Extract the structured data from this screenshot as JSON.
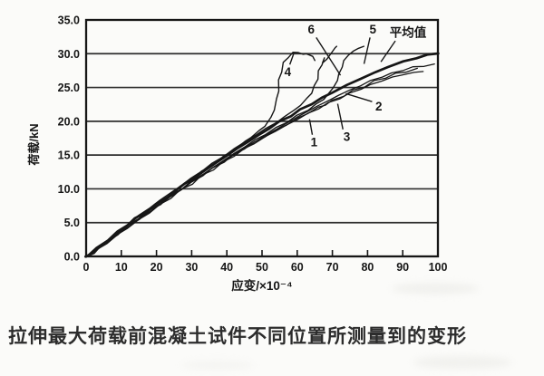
{
  "figure_caption": "拉伸最大荷载前混凝土试件不同位置所测量到的变形",
  "chart_data": {
    "type": "line",
    "title": "",
    "xlabel": "应变/×10⁻⁴",
    "ylabel": "荷载/kN",
    "xlim": [
      0,
      100
    ],
    "ylim": [
      0,
      35
    ],
    "x_ticks": [
      0,
      10,
      20,
      30,
      40,
      50,
      60,
      70,
      80,
      90,
      100
    ],
    "y_ticks": [
      "0.0",
      "5.0",
      "10.0",
      "15.0",
      "20.0",
      "25.0",
      "30.0",
      "35.0"
    ],
    "grid": "horizontal-only",
    "legend": "inline-numbered-labels",
    "ink_color": "#161616",
    "grid_color": "#2e2e2e",
    "series": [
      {
        "name": "1",
        "width": 1.3,
        "points": [
          [
            0,
            0
          ],
          [
            3,
            0.9
          ],
          [
            6,
            2.0
          ],
          [
            9,
            3.2
          ],
          [
            12,
            4.3
          ],
          [
            15,
            5.4
          ],
          [
            18,
            6.5
          ],
          [
            21,
            7.6
          ],
          [
            24,
            8.7
          ],
          [
            27,
            9.8
          ],
          [
            30,
            10.8
          ],
          [
            33,
            11.9
          ],
          [
            36,
            12.9
          ],
          [
            39,
            13.9
          ],
          [
            42,
            14.9
          ],
          [
            45,
            15.9
          ],
          [
            48,
            16.8
          ],
          [
            51,
            17.7
          ],
          [
            54,
            18.6
          ],
          [
            57,
            19.4
          ],
          [
            60,
            20.3
          ],
          [
            63,
            21.1
          ],
          [
            66,
            21.9
          ],
          [
            69,
            22.7
          ],
          [
            72,
            23.4
          ],
          [
            75,
            24.1
          ],
          [
            78,
            24.8
          ],
          [
            81,
            25.4
          ],
          [
            84,
            26.0
          ],
          [
            87,
            26.5
          ],
          [
            90,
            26.9
          ],
          [
            93,
            27.2
          ],
          [
            96,
            27.4
          ]
        ]
      },
      {
        "name": "2",
        "width": 1.3,
        "points": [
          [
            0,
            0
          ],
          [
            3,
            1.1
          ],
          [
            6,
            2.3
          ],
          [
            9,
            3.4
          ],
          [
            12,
            4.6
          ],
          [
            15,
            5.7
          ],
          [
            18,
            6.8
          ],
          [
            21,
            7.9
          ],
          [
            24,
            9.0
          ],
          [
            27,
            10.0
          ],
          [
            30,
            11.1
          ],
          [
            33,
            12.1
          ],
          [
            36,
            13.1
          ],
          [
            39,
            14.1
          ],
          [
            42,
            15.1
          ],
          [
            45,
            16.1
          ],
          [
            48,
            17.0
          ],
          [
            51,
            17.9
          ],
          [
            54,
            18.8
          ],
          [
            57,
            19.7
          ],
          [
            60,
            20.6
          ],
          [
            63,
            21.5
          ],
          [
            66,
            22.3
          ],
          [
            69,
            23.1
          ],
          [
            72,
            23.9
          ],
          [
            75,
            24.6
          ],
          [
            78,
            25.3
          ],
          [
            81,
            26.0
          ],
          [
            84,
            26.6
          ],
          [
            87,
            27.1
          ],
          [
            90,
            27.6
          ],
          [
            93,
            28.0
          ],
          [
            96,
            28.2
          ],
          [
            99,
            28.4
          ]
        ]
      },
      {
        "name": "3",
        "width": 1.3,
        "points": [
          [
            0,
            0
          ],
          [
            3,
            1.0
          ],
          [
            6,
            2.1
          ],
          [
            9,
            3.3
          ],
          [
            12,
            4.4
          ],
          [
            15,
            5.5
          ],
          [
            18,
            6.6
          ],
          [
            21,
            7.7
          ],
          [
            24,
            8.8
          ],
          [
            27,
            9.9
          ],
          [
            30,
            10.9
          ],
          [
            33,
            12.0
          ],
          [
            36,
            13.0
          ],
          [
            39,
            14.0
          ],
          [
            42,
            15.0
          ],
          [
            45,
            16.0
          ],
          [
            48,
            16.9
          ],
          [
            51,
            17.8
          ],
          [
            54,
            18.7
          ],
          [
            57,
            19.5
          ],
          [
            60,
            20.4
          ],
          [
            63,
            21.2
          ],
          [
            66,
            22.0
          ],
          [
            68,
            22.5
          ],
          [
            70,
            23.0
          ],
          [
            73,
            23.8
          ],
          [
            76,
            24.5
          ],
          [
            79,
            25.2
          ],
          [
            82,
            25.9
          ],
          [
            85,
            26.5
          ],
          [
            88,
            27.0
          ],
          [
            91,
            27.4
          ],
          [
            94,
            27.7
          ]
        ]
      },
      {
        "name": "4",
        "width": 1.4,
        "points": [
          [
            0,
            0
          ],
          [
            3,
            1.2
          ],
          [
            6,
            2.4
          ],
          [
            9,
            3.6
          ],
          [
            12,
            4.7
          ],
          [
            15,
            5.9
          ],
          [
            18,
            7.0
          ],
          [
            21,
            8.1
          ],
          [
            24,
            9.2
          ],
          [
            27,
            10.3
          ],
          [
            30,
            11.4
          ],
          [
            33,
            12.5
          ],
          [
            36,
            13.6
          ],
          [
            39,
            14.7
          ],
          [
            42,
            15.8
          ],
          [
            45,
            16.9
          ],
          [
            47,
            17.7
          ],
          [
            49,
            18.5
          ],
          [
            51,
            19.4
          ],
          [
            52.5,
            20.5
          ],
          [
            53.5,
            21.8
          ],
          [
            54.2,
            23.2
          ],
          [
            54.6,
            24.6
          ],
          [
            54.9,
            26.0
          ],
          [
            55.4,
            27.4
          ],
          [
            56.2,
            28.6
          ],
          [
            57.3,
            29.5
          ],
          [
            58.8,
            30.1
          ],
          [
            60.3,
            30.3
          ],
          [
            61.5,
            29.8
          ],
          [
            62.8,
            30.1
          ],
          [
            64.2,
            29.5
          ],
          [
            65.2,
            29.1
          ]
        ]
      },
      {
        "name": "5",
        "width": 1.4,
        "points": [
          [
            0,
            0
          ],
          [
            3,
            1.0
          ],
          [
            6,
            2.2
          ],
          [
            9,
            3.3
          ],
          [
            12,
            4.5
          ],
          [
            15,
            5.6
          ],
          [
            18,
            6.7
          ],
          [
            21,
            7.8
          ],
          [
            24,
            8.9
          ],
          [
            27,
            10.0
          ],
          [
            30,
            11.0
          ],
          [
            33,
            12.1
          ],
          [
            36,
            13.1
          ],
          [
            39,
            14.2
          ],
          [
            42,
            15.2
          ],
          [
            45,
            16.2
          ],
          [
            48,
            17.2
          ],
          [
            51,
            18.1
          ],
          [
            54,
            19.0
          ],
          [
            57,
            19.9
          ],
          [
            60,
            20.8
          ],
          [
            63,
            21.7
          ],
          [
            65.5,
            22.5
          ],
          [
            67.5,
            23.3
          ],
          [
            69,
            24.1
          ],
          [
            70.3,
            25.0
          ],
          [
            71.3,
            26.0
          ],
          [
            72,
            27.0
          ],
          [
            72.6,
            28.0
          ],
          [
            73.4,
            29.0
          ],
          [
            74.5,
            29.8
          ],
          [
            76,
            30.4
          ],
          [
            77.5,
            30.8
          ],
          [
            78.8,
            31.1
          ]
        ]
      },
      {
        "name": "6",
        "width": 1.4,
        "points": [
          [
            0,
            0
          ],
          [
            3,
            1.3
          ],
          [
            6,
            2.5
          ],
          [
            9,
            3.7
          ],
          [
            12,
            4.9
          ],
          [
            15,
            6.0
          ],
          [
            18,
            7.2
          ],
          [
            21,
            8.3
          ],
          [
            24,
            9.4
          ],
          [
            27,
            10.5
          ],
          [
            30,
            11.6
          ],
          [
            33,
            12.7
          ],
          [
            36,
            13.8
          ],
          [
            39,
            14.8
          ],
          [
            42,
            15.9
          ],
          [
            45,
            16.9
          ],
          [
            48,
            17.9
          ],
          [
            51,
            18.9
          ],
          [
            54,
            19.8
          ],
          [
            56.5,
            20.7
          ],
          [
            59,
            21.6
          ],
          [
            61,
            22.4
          ],
          [
            62.7,
            23.3
          ],
          [
            64,
            24.2
          ],
          [
            65,
            25.2
          ],
          [
            65.7,
            26.3
          ],
          [
            66.2,
            27.4
          ],
          [
            66.9,
            28.4
          ],
          [
            67.8,
            29.3
          ],
          [
            67.2,
            28.7
          ],
          [
            68.3,
            29.1
          ],
          [
            69.6,
            30.0
          ],
          [
            70.6,
            30.8
          ],
          [
            71.4,
            31.2
          ]
        ]
      },
      {
        "name": "平均值",
        "width": 2.7,
        "points": [
          [
            0,
            0
          ],
          [
            2,
            0.5
          ],
          [
            4,
            1.5
          ],
          [
            6,
            2.1
          ],
          [
            8,
            3.1
          ],
          [
            10,
            3.8
          ],
          [
            12,
            4.8
          ],
          [
            14,
            5.6
          ],
          [
            17,
            6.6
          ],
          [
            20,
            7.7
          ],
          [
            23,
            8.8
          ],
          [
            26,
            9.9
          ],
          [
            28,
            10.8
          ],
          [
            31,
            11.7
          ],
          [
            34,
            12.8
          ],
          [
            37,
            13.9
          ],
          [
            40,
            14.9
          ],
          [
            43,
            16.0
          ],
          [
            46,
            17.0
          ],
          [
            49,
            17.9
          ],
          [
            52,
            19.0
          ],
          [
            55,
            19.9
          ],
          [
            58,
            20.8
          ],
          [
            61,
            21.7
          ],
          [
            64,
            22.6
          ],
          [
            67,
            23.4
          ],
          [
            70,
            24.3
          ],
          [
            74,
            25.3
          ],
          [
            78,
            26.3
          ],
          [
            82,
            27.2
          ],
          [
            86,
            28.1
          ],
          [
            90,
            28.8
          ],
          [
            94,
            29.4
          ],
          [
            97,
            29.8
          ],
          [
            100,
            30.1
          ]
        ]
      }
    ],
    "annotations": [
      {
        "label": "1",
        "tx": 64.8,
        "ty": 16.9,
        "leader": [
          64.3,
          18.0,
          63.5,
          20.3
        ]
      },
      {
        "label": "2",
        "tx": 83.2,
        "ty": 22.2,
        "leader": [
          81.3,
          22.9,
          73.8,
          24.1
        ]
      },
      {
        "label": "3",
        "tx": 74.1,
        "ty": 17.7,
        "leader": [
          73.0,
          18.8,
          71.5,
          22.6
        ]
      },
      {
        "label": "4",
        "tx": 57.3,
        "ty": 27.3,
        "leader": [
          57.9,
          28.4,
          59.0,
          30.0
        ]
      },
      {
        "label": "5",
        "tx": 81.5,
        "ty": 33.6,
        "leader": [
          80.7,
          32.4,
          79.0,
          28.5
        ]
      },
      {
        "label": "6",
        "tx": 64.0,
        "ty": 33.6,
        "leader": [
          65.4,
          32.4,
          72.3,
          26.8
        ]
      },
      {
        "label": "平均值",
        "tx": 91.5,
        "ty": 33.1,
        "leader": [
          87.9,
          31.9,
          83.8,
          28.8
        ]
      }
    ]
  }
}
